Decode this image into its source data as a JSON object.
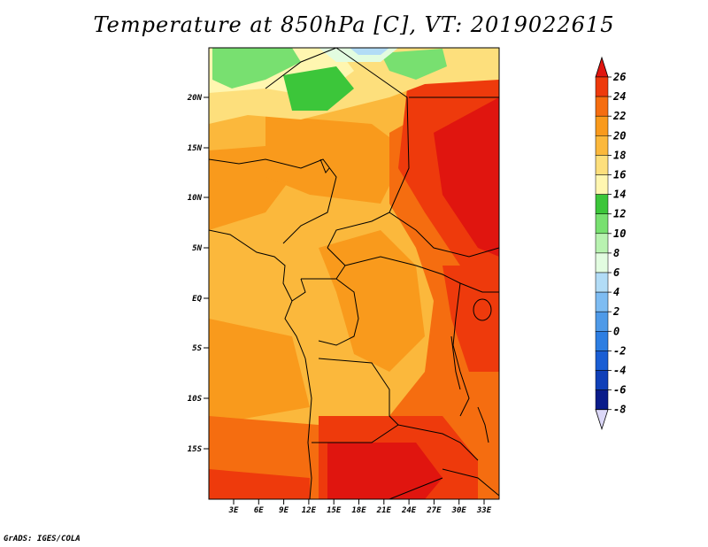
{
  "title": "Temperature at 850hPa [C], VT: 2019022615",
  "credit": "GrADS: IGES/COLA",
  "map": {
    "lat_labels": [
      "20N",
      "15N",
      "10N",
      "5N",
      "EQ",
      "5S",
      "10S",
      "15S"
    ],
    "lon_labels": [
      "3E",
      "6E",
      "9E",
      "12E",
      "15E",
      "18E",
      "21E",
      "24E",
      "27E",
      "30E",
      "33E"
    ]
  },
  "colorbar": {
    "labels": [
      "26",
      "24",
      "22",
      "20",
      "18",
      "16",
      "14",
      "12",
      "10",
      "8",
      "6",
      "4",
      "2",
      "0",
      "-2",
      "-4",
      "-6",
      "-8"
    ],
    "colors": [
      "#e0150f",
      "#ee3a0c",
      "#f56d10",
      "#f99a1c",
      "#fbb83c",
      "#fddf7c",
      "#fff6b0",
      "#3cc63a",
      "#78e070",
      "#b8f2b0",
      "#e2fce0",
      "#b2dcf6",
      "#7ebcf2",
      "#4f9ae8",
      "#2d7ee2",
      "#1a5ed4",
      "#1040b8",
      "#0a1c8a",
      "#090a70"
    ],
    "top_color": "#e0150f",
    "bottom_color": "#dcd8f8"
  }
}
